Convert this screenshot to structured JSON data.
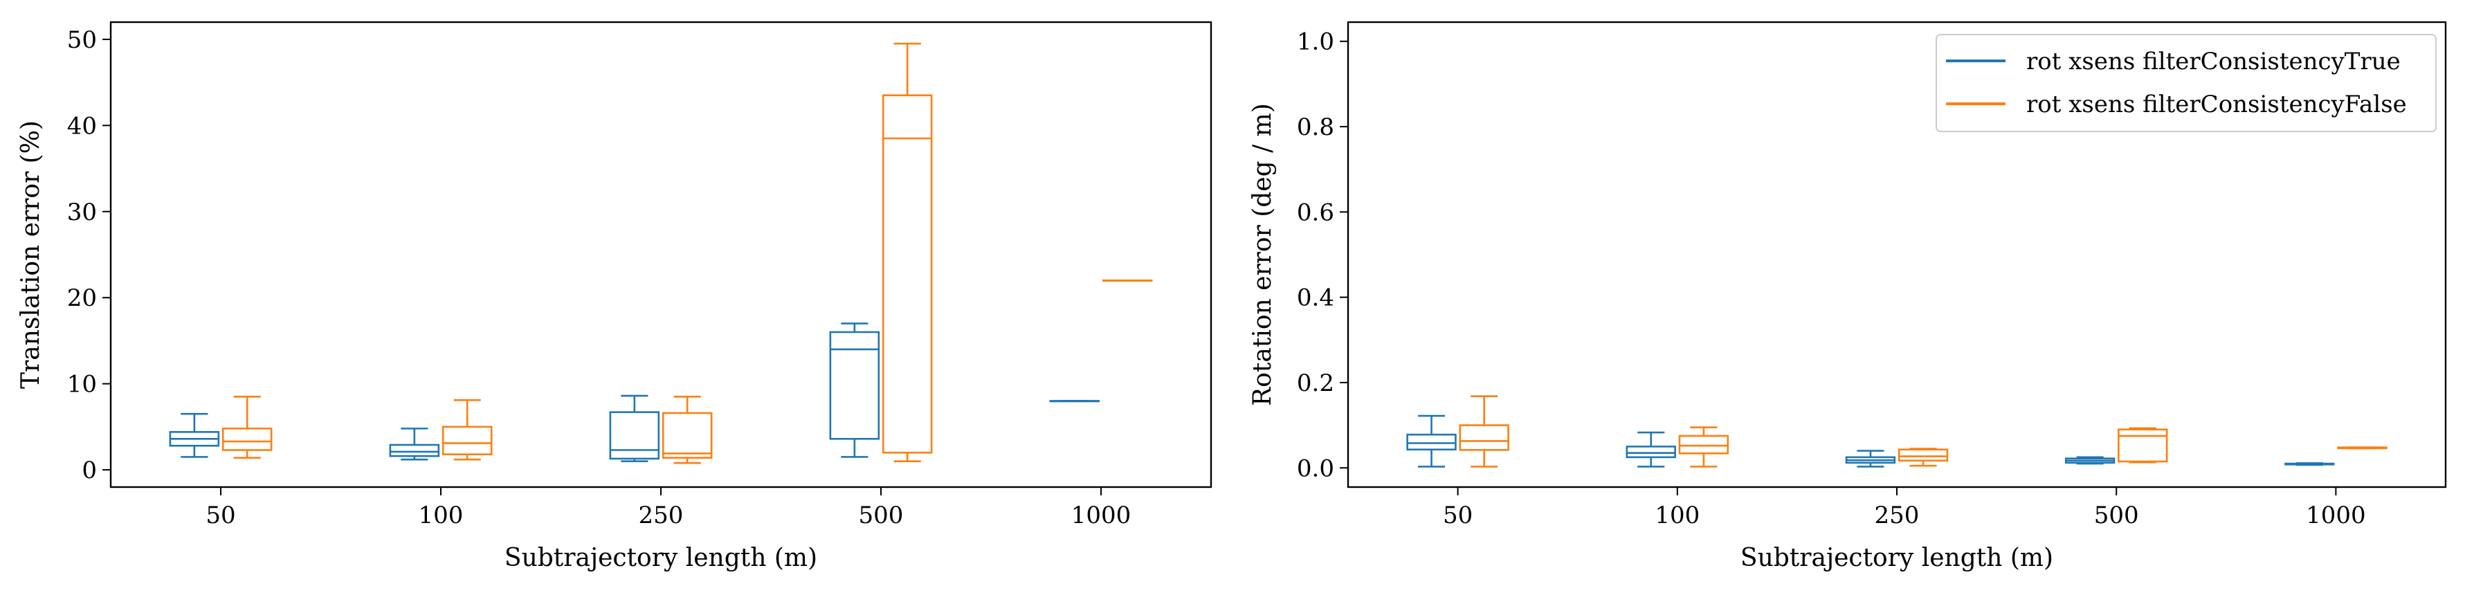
{
  "colors": {
    "true": "#1f77b4",
    "false": "#ff7f0e"
  },
  "chart_data": [
    {
      "type": "box",
      "xlabel": "Subtrajectory length (m)",
      "ylabel": "Translation error (%)",
      "categories": [
        "50",
        "100",
        "250",
        "500",
        "1000"
      ],
      "ylim": [
        -2,
        52
      ],
      "yticks": [
        0,
        10,
        20,
        30,
        40,
        50
      ],
      "legend": null,
      "series": [
        {
          "name": "rot xsens filterConsistencyTrue",
          "color": "#1f77b4",
          "boxes": [
            {
              "whislo": 1.5,
              "q1": 2.8,
              "med": 3.6,
              "q3": 4.4,
              "whishi": 6.5
            },
            {
              "whislo": 1.2,
              "q1": 1.6,
              "med": 2.1,
              "q3": 2.9,
              "whishi": 4.8
            },
            {
              "whislo": 1.0,
              "q1": 1.3,
              "med": 2.3,
              "q3": 6.7,
              "whishi": 8.6
            },
            {
              "whislo": 1.5,
              "q1": 3.6,
              "med": 14.0,
              "q3": 16.0,
              "whishi": 17.0
            },
            {
              "whislo": 8.0,
              "q1": 8.0,
              "med": 8.0,
              "q3": 8.0,
              "whishi": 8.0
            }
          ]
        },
        {
          "name": "rot xsens filterConsistencyFalse",
          "color": "#ff7f0e",
          "boxes": [
            {
              "whislo": 1.4,
              "q1": 2.3,
              "med": 3.3,
              "q3": 4.8,
              "whishi": 8.5
            },
            {
              "whislo": 1.2,
              "q1": 1.8,
              "med": 3.1,
              "q3": 5.0,
              "whishi": 8.1
            },
            {
              "whislo": 0.8,
              "q1": 1.4,
              "med": 1.9,
              "q3": 6.6,
              "whishi": 8.5
            },
            {
              "whislo": 1.0,
              "q1": 2.0,
              "med": 38.5,
              "q3": 43.5,
              "whishi": 49.5
            },
            {
              "whislo": 22.0,
              "q1": 22.0,
              "med": 22.0,
              "q3": 22.0,
              "whishi": 22.0
            }
          ]
        }
      ]
    },
    {
      "type": "box",
      "xlabel": "Subtrajectory length (m)",
      "ylabel": "Rotation error (deg / m)",
      "categories": [
        "50",
        "100",
        "250",
        "500",
        "1000"
      ],
      "ylim": [
        -0.045,
        1.045
      ],
      "yticks": [
        "0.0",
        "0.2",
        "0.4",
        "0.6",
        "0.8",
        "1.0"
      ],
      "legend": "top-right",
      "series": [
        {
          "name": "rot xsens filterConsistencyTrue",
          "color": "#1f77b4",
          "boxes": [
            {
              "whislo": 0.003,
              "q1": 0.043,
              "med": 0.058,
              "q3": 0.078,
              "whishi": 0.122
            },
            {
              "whislo": 0.003,
              "q1": 0.025,
              "med": 0.035,
              "q3": 0.05,
              "whishi": 0.083
            },
            {
              "whislo": 0.003,
              "q1": 0.012,
              "med": 0.018,
              "q3": 0.025,
              "whishi": 0.04
            },
            {
              "whislo": 0.01,
              "q1": 0.012,
              "med": 0.017,
              "q3": 0.022,
              "whishi": 0.025
            },
            {
              "whislo": 0.007,
              "q1": 0.008,
              "med": 0.009,
              "q3": 0.01,
              "whishi": 0.011
            }
          ]
        },
        {
          "name": "rot xsens filterConsistencyFalse",
          "color": "#ff7f0e",
          "boxes": [
            {
              "whislo": 0.003,
              "q1": 0.042,
              "med": 0.063,
              "q3": 0.1,
              "whishi": 0.168
            },
            {
              "whislo": 0.003,
              "q1": 0.034,
              "med": 0.052,
              "q3": 0.075,
              "whishi": 0.095
            },
            {
              "whislo": 0.005,
              "q1": 0.017,
              "med": 0.027,
              "q3": 0.043,
              "whishi": 0.045
            },
            {
              "whislo": 0.013,
              "q1": 0.015,
              "med": 0.075,
              "q3": 0.09,
              "whishi": 0.093
            },
            {
              "whislo": 0.046,
              "q1": 0.046,
              "med": 0.047,
              "q3": 0.048,
              "whishi": 0.048
            }
          ]
        }
      ]
    }
  ]
}
